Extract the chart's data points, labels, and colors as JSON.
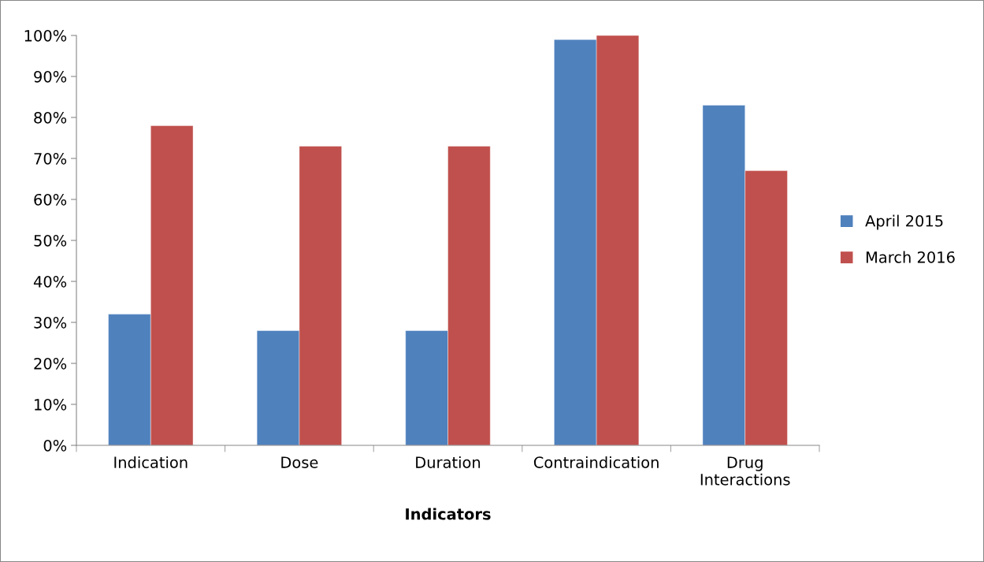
{
  "chart_data": {
    "type": "bar",
    "xlabel": "Indicators",
    "categories": [
      "Indication",
      "Dose",
      "Duration",
      "Contraindication",
      "Drug\nInteractions"
    ],
    "series": [
      {
        "name": "April 2015",
        "color": "#4f81bd",
        "values": [
          32,
          28,
          28,
          99,
          83
        ]
      },
      {
        "name": "March 2016",
        "color": "#c0504d",
        "values": [
          78,
          73,
          73,
          100,
          67
        ]
      }
    ],
    "ylim": [
      0,
      100
    ],
    "yticks": [
      {
        "value": 0,
        "label": "0%"
      },
      {
        "value": 10,
        "label": "10%"
      },
      {
        "value": 20,
        "label": "20%"
      },
      {
        "value": 30,
        "label": "30%"
      },
      {
        "value": 40,
        "label": "40%"
      },
      {
        "value": 50,
        "label": "50%"
      },
      {
        "value": 60,
        "label": "60%"
      },
      {
        "value": 70,
        "label": "70%"
      },
      {
        "value": 80,
        "label": "80%"
      },
      {
        "value": 90,
        "label": "90%"
      },
      {
        "value": 100,
        "label": "100%"
      }
    ],
    "grid": false,
    "legend": "right"
  }
}
